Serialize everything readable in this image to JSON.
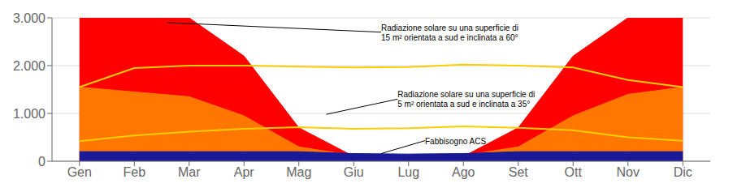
{
  "chart_data": {
    "type": "area",
    "categories": [
      "Gen",
      "Feb",
      "Mar",
      "Apr",
      "Mag",
      "Giu",
      "Lug",
      "Ago",
      "Set",
      "Ott",
      "Nov",
      "Dic"
    ],
    "series": [
      {
        "type": "area",
        "color": "#ff0000",
        "values": [
          3000,
          3000,
          3000,
          2200,
          700,
          100,
          50,
          100,
          700,
          2200,
          3000,
          3000
        ]
      },
      {
        "type": "area",
        "color": "#ff7700",
        "values": [
          1550,
          1450,
          1350,
          950,
          300,
          120,
          100,
          120,
          300,
          950,
          1400,
          1550
        ]
      },
      {
        "type": "area",
        "color": "#1a1a99",
        "values": [
          200,
          200,
          200,
          200,
          200,
          160,
          150,
          160,
          200,
          200,
          200,
          200
        ]
      },
      {
        "type": "line",
        "color": "#ffcc00",
        "values": [
          1550,
          1950,
          2000,
          2000,
          1980,
          1960,
          1970,
          2020,
          2000,
          1960,
          1700,
          1550
        ]
      },
      {
        "type": "line",
        "color": "#ffcc00",
        "values": [
          420,
          540,
          620,
          680,
          710,
          680,
          690,
          730,
          700,
          650,
          500,
          430
        ]
      }
    ],
    "ylim": [
      0,
      3000
    ],
    "yticks": [
      0,
      {
        "value": 1000,
        "label": "1.000"
      },
      {
        "value": 2000,
        "label": "2.000"
      },
      {
        "value": 3000,
        "label": "3.000"
      }
    ],
    "grid": true,
    "annotations": [
      [
        "Radiazione solare su una superficie di",
        "15 m² orientata a sud e inclinata a 60°"
      ],
      [
        "Radiazione solare su una superficie di",
        "5 m² orientata a sud e inclinata a 35°"
      ],
      [
        "Fabbisogno ACS"
      ]
    ]
  }
}
